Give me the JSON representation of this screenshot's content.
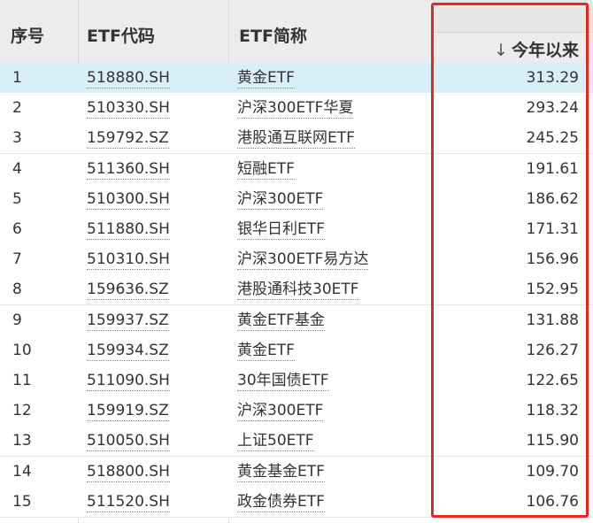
{
  "headers": {
    "seq": "序号",
    "code": "ETF代码",
    "name": "ETF简称",
    "ytd": "今年以来",
    "sort_arrow": "↓"
  },
  "colors": {
    "header_bg": "#ececec",
    "selected_row_bg": "#d9eff7",
    "highlight_box": "#e8271f"
  },
  "rows": [
    {
      "seq": "1",
      "code": "518880.SH",
      "name": "黄金ETF",
      "ytd": "313.29"
    },
    {
      "seq": "2",
      "code": "510330.SH",
      "name": "沪深300ETF华夏",
      "ytd": "293.24"
    },
    {
      "seq": "3",
      "code": "159792.SZ",
      "name": "港股通互联网ETF",
      "ytd": "245.25"
    },
    {
      "seq": "4",
      "code": "511360.SH",
      "name": "短融ETF",
      "ytd": "191.61"
    },
    {
      "seq": "5",
      "code": "510300.SH",
      "name": "沪深300ETF",
      "ytd": "186.62"
    },
    {
      "seq": "6",
      "code": "511880.SH",
      "name": "银华日利ETF",
      "ytd": "171.31"
    },
    {
      "seq": "7",
      "code": "510310.SH",
      "name": "沪深300ETF易方达",
      "ytd": "156.96"
    },
    {
      "seq": "8",
      "code": "159636.SZ",
      "name": "港股通科技30ETF",
      "ytd": "152.95"
    },
    {
      "seq": "9",
      "code": "159937.SZ",
      "name": "黄金ETF基金",
      "ytd": "131.88"
    },
    {
      "seq": "10",
      "code": "159934.SZ",
      "name": "黄金ETF",
      "ytd": "126.27"
    },
    {
      "seq": "11",
      "code": "511090.SH",
      "name": "30年国债ETF",
      "ytd": "122.65"
    },
    {
      "seq": "12",
      "code": "159919.SZ",
      "name": "沪深300ETF",
      "ytd": "118.32"
    },
    {
      "seq": "13",
      "code": "510050.SH",
      "name": "上证50ETF",
      "ytd": "115.90"
    },
    {
      "seq": "14",
      "code": "518800.SH",
      "name": "黄金基金ETF",
      "ytd": "109.70"
    },
    {
      "seq": "15",
      "code": "511520.SH",
      "name": "政金债券ETF",
      "ytd": "106.76"
    }
  ]
}
